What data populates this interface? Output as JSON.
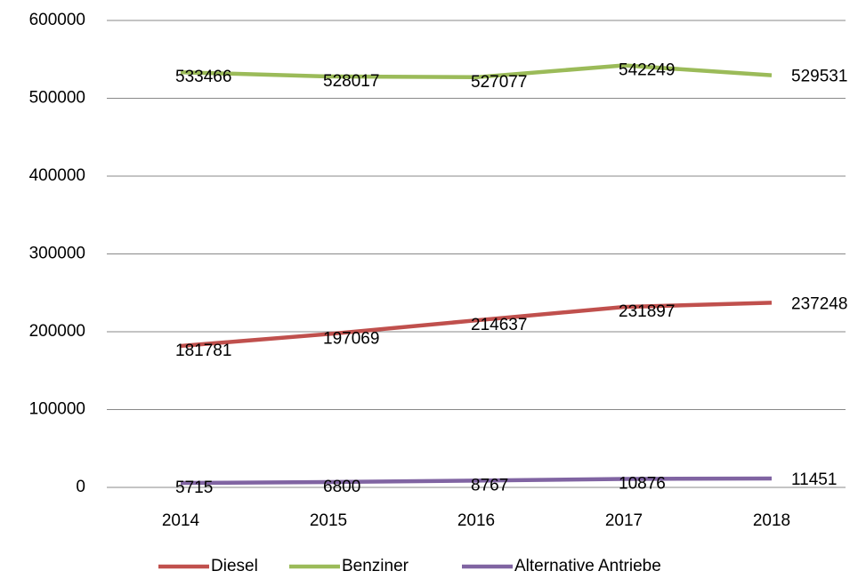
{
  "chart_data": {
    "type": "line",
    "categories": [
      "2014",
      "2015",
      "2016",
      "2017",
      "2018"
    ],
    "series": [
      {
        "name": "Diesel",
        "color": "#c0504d",
        "values": [
          181781,
          197069,
          214637,
          231897,
          237248
        ]
      },
      {
        "name": "Benziner",
        "color": "#9bbb59",
        "values": [
          533466,
          528017,
          527077,
          542249,
          529531
        ]
      },
      {
        "name": "Alternative Antriebe",
        "color": "#8064a2",
        "values": [
          5715,
          6800,
          8767,
          10876,
          11451
        ]
      }
    ],
    "ylim": [
      0,
      600000
    ],
    "yticks": [
      0,
      100000,
      200000,
      300000,
      400000,
      500000,
      600000
    ],
    "grid": true,
    "legend": "bottom",
    "data_labels": true
  }
}
